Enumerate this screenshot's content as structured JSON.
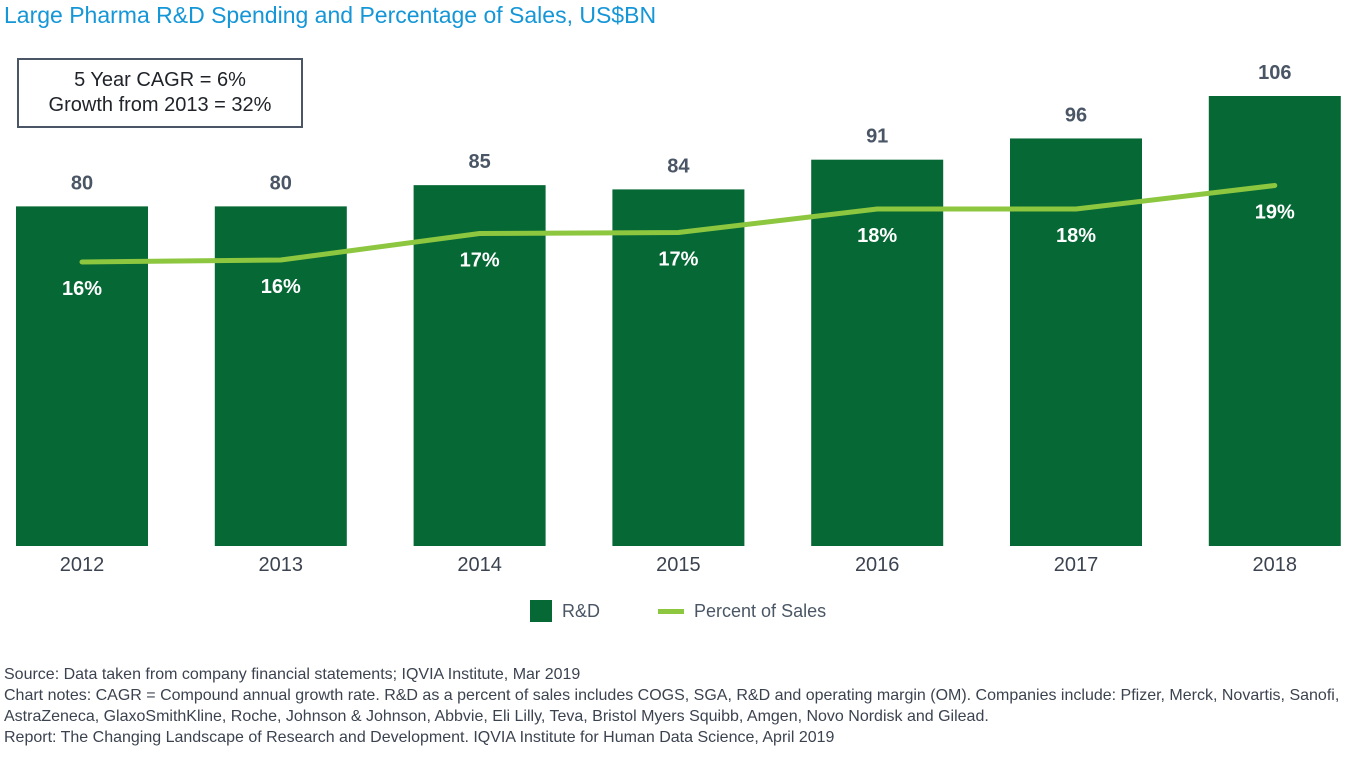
{
  "title": "Large Pharma R&D Spending and Percentage of Sales, US$BN",
  "callout": {
    "line1": "5 Year CAGR = 6%",
    "line2": "Growth from 2013 = 32%"
  },
  "chart_data": {
    "type": "bar",
    "categories": [
      "2012",
      "2013",
      "2014",
      "2015",
      "2016",
      "2017",
      "2018"
    ],
    "series": [
      {
        "name": "R&D",
        "kind": "bar",
        "values": [
          80,
          80,
          85,
          84,
          91,
          96,
          106
        ],
        "labels": [
          "80",
          "80",
          "85",
          "84",
          "91",
          "96",
          "106"
        ]
      },
      {
        "name": "Percent of Sales",
        "kind": "line",
        "values": [
          16,
          16,
          17,
          17,
          18,
          18,
          19
        ],
        "labels": [
          "16%",
          "16%",
          "17%",
          "17%",
          "18%",
          "18%",
          "19%"
        ]
      }
    ],
    "title": "Large Pharma R&D Spending and Percentage of Sales, US$BN",
    "xlabel": "",
    "ylabel": "",
    "ylim": [
      0,
      110
    ],
    "grid": false,
    "legend_position": "bottom-center",
    "colors": {
      "bar": "#066835",
      "line": "#8dc63f"
    }
  },
  "legend": {
    "bar_label": "R&D",
    "line_label": "Percent of Sales"
  },
  "notes": {
    "source": "Source: Data taken from company financial statements; IQVIA Institute, Mar 2019",
    "chart_notes": "Chart notes: CAGR = Compound annual growth rate. R&D as a percent of sales includes COGS, SGA, R&D and operating margin (OM). Companies include: Pfizer, Merck, Novartis, Sanofi, AstraZeneca, GlaxoSmithKline, Roche, Johnson & Johnson, Abbvie, Eli Lilly, Teva, Bristol Myers Squibb, Amgen, Novo Nordisk and Gilead.",
    "report": "Report: The Changing Landscape of Research and Development. IQVIA Institute for Human Data Science, April 2019"
  }
}
